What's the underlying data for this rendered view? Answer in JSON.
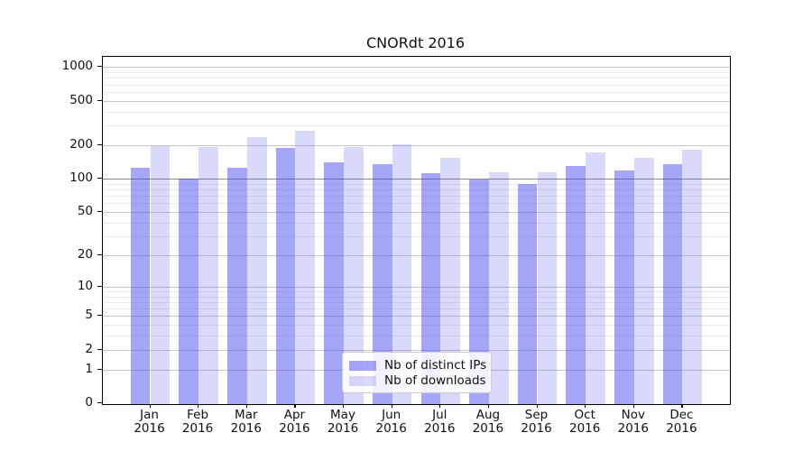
{
  "title": "CNORdt 2016",
  "colors": {
    "bar_distinct_ips": "rgba(66,66,242,0.47)",
    "bar_downloads": "rgba(66,66,242,0.20)",
    "grid_major": "#c8c8c8",
    "grid_minor": "#eaeaea",
    "grid_emphasis": "#8c8c8c",
    "axis": "#000000"
  },
  "legend": {
    "items": [
      {
        "label": "Nb of distinct IPs",
        "series": "distinct_ips"
      },
      {
        "label": "Nb of downloads",
        "series": "downloads"
      }
    ]
  },
  "chart_data": {
    "type": "bar",
    "title": "CNORdt 2016",
    "months": [
      "Jan",
      "Feb",
      "Mar",
      "Apr",
      "May",
      "Jun",
      "Jul",
      "Aug",
      "Sep",
      "Oct",
      "Nov",
      "Dec"
    ],
    "year": "2016",
    "categories": [
      "Jan 2016",
      "Feb 2016",
      "Mar 2016",
      "Apr 2016",
      "May 2016",
      "Jun 2016",
      "Jul 2016",
      "Aug 2016",
      "Sep 2016",
      "Oct 2016",
      "Nov 2016",
      "Dec 2016"
    ],
    "series": [
      {
        "key": "distinct_ips",
        "name": "Nb of distinct IPs",
        "values": [
          125,
          100,
          125,
          189,
          141,
          134,
          112,
          98,
          89,
          130,
          118,
          135
        ]
      },
      {
        "key": "downloads",
        "name": "Nb of downloads",
        "values": [
          196,
          192,
          238,
          269,
          192,
          202,
          153,
          114,
          115,
          171,
          155,
          181
        ]
      }
    ],
    "y_scale": "log10(1+v)",
    "y_ticks": [
      0,
      1,
      2,
      5,
      10,
      20,
      50,
      100,
      200,
      500,
      1000
    ],
    "y_minor_ticks": [
      3,
      4,
      6,
      7,
      8,
      9,
      30,
      40,
      60,
      70,
      80,
      90,
      300,
      400,
      600,
      700,
      800,
      900
    ],
    "ylim": [
      0,
      1280
    ],
    "xlabel": "",
    "ylabel": "",
    "grid": true,
    "legend_position": "lower center"
  }
}
